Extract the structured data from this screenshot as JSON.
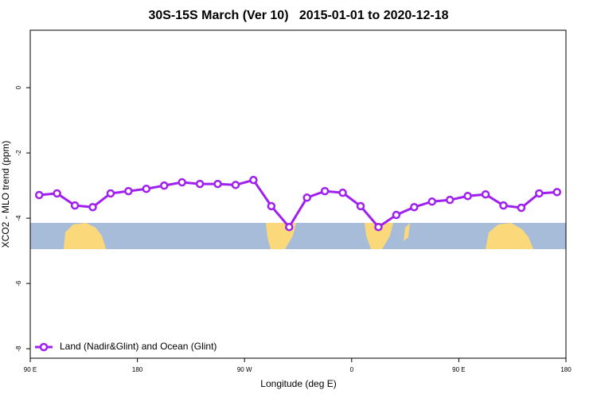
{
  "chart_data": {
    "type": "line",
    "title": "30S-15S March (Ver 10)   2015-01-01 to 2020-12-18",
    "x_label": "Longitude (deg E)",
    "y_label": "XCO2 - MLO trend (ppm)",
    "x": [
      97.5,
      112.5,
      127.5,
      142.5,
      157.5,
      172.5,
      187.5,
      202.5,
      217.5,
      232.5,
      247.5,
      262.5,
      277.5,
      292.5,
      307.5,
      322.5,
      337.5,
      352.5,
      367.5,
      382.5,
      397.5,
      412.5,
      427.5,
      442.5,
      457.5,
      472.5,
      487.5,
      502.5,
      517.5,
      532.5
    ],
    "series": [
      {
        "name": "Land (Nadir&Glint) and Ocean (Glint)",
        "color": "#a020f0",
        "values": [
          -3.29,
          -3.24,
          -3.61,
          -3.66,
          -3.24,
          -3.17,
          -3.1,
          -3.0,
          -2.9,
          -2.95,
          -2.95,
          -2.98,
          -2.83,
          -3.63,
          -4.27,
          -3.37,
          -3.17,
          -3.22,
          -3.63,
          -4.27,
          -3.9,
          -3.66,
          -3.49,
          -3.44,
          -3.32,
          -3.27,
          -3.61,
          -3.68,
          -3.24,
          -3.2
        ]
      }
    ],
    "xlim": [
      90,
      540
    ],
    "xticks": [
      {
        "value": 90,
        "label": "90 E"
      },
      180,
      {
        "value": 270,
        "label": "90 W"
      },
      {
        "value": 360,
        "label": "0"
      },
      {
        "value": 450,
        "label": "90 E"
      },
      {
        "value": 540,
        "label": "180"
      }
    ],
    "ylim": [
      -8.29,
      1.76
    ],
    "yticks": [
      -8,
      -6,
      -4,
      -2,
      0
    ],
    "legend": "bottom-left"
  }
}
